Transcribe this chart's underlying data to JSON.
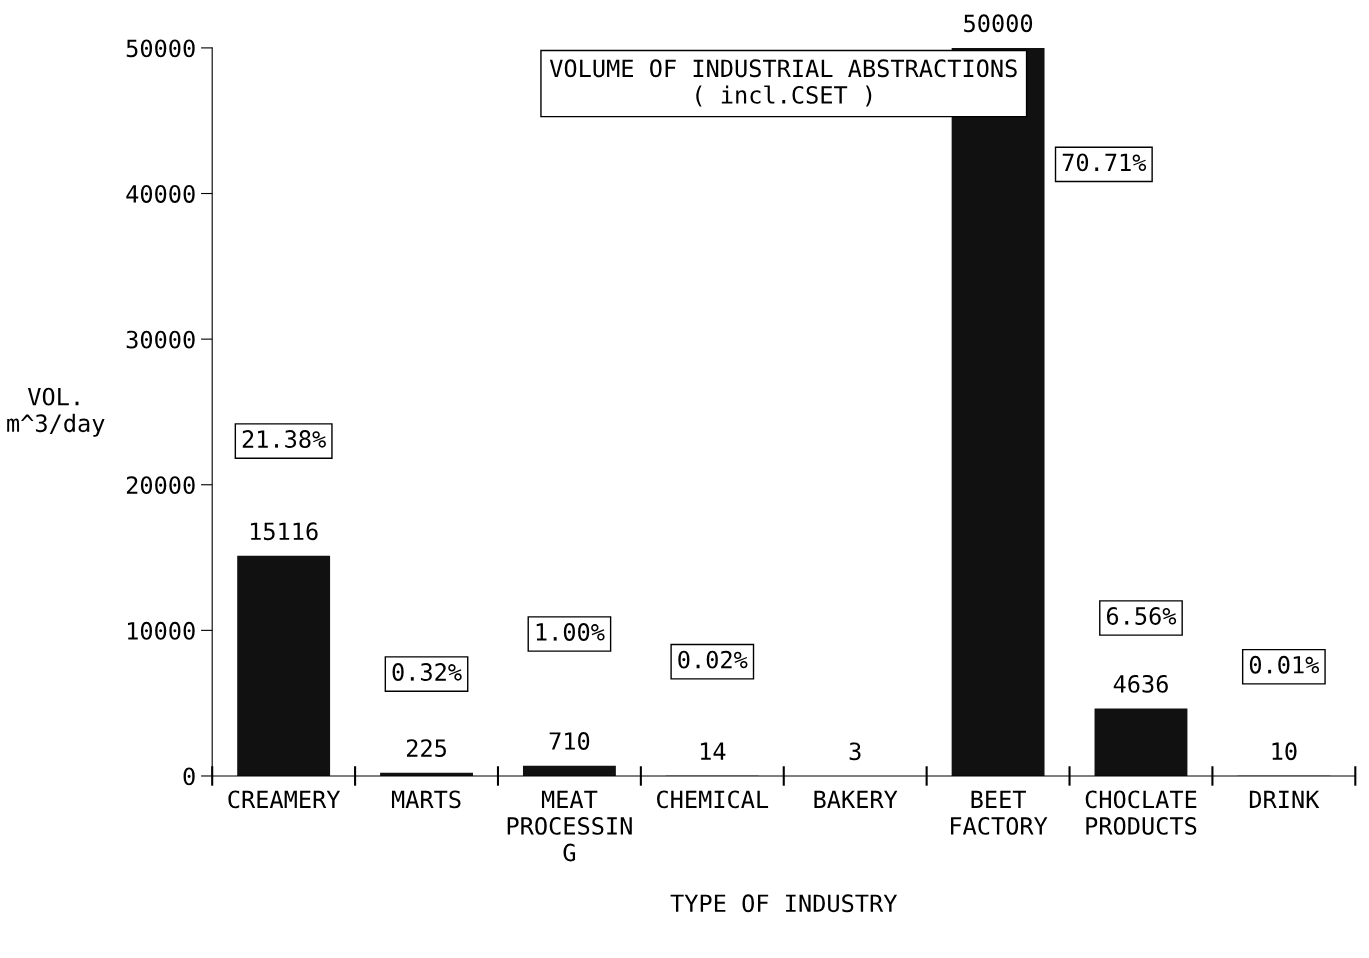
{
  "chart_data": {
    "type": "bar",
    "title": "VOLUME OF INDUSTRIAL ABSTRACTIONS",
    "subtitle": "( incl.CSET )",
    "xlabel": "TYPE OF INDUSTRY",
    "ylabel": "VOL.\nm^3/day",
    "categories": [
      "CREAMERY",
      "MARTS",
      "MEAT\nPROCESSIN\nG",
      "CHEMICAL",
      "BAKERY",
      "BEET\nFACTORY",
      "CHOCLATE\nPRODUCTS",
      "DRINK"
    ],
    "values": [
      15116,
      225,
      710,
      14,
      3,
      50000,
      4636,
      10
    ],
    "color": "#111111",
    "data_labels": true,
    "ylim": [
      0,
      50000
    ],
    "yticks": [
      0,
      10000,
      20000,
      30000,
      40000,
      50000
    ],
    "grid": false,
    "annotations": [
      "21.38%",
      "0.32%",
      "1.00%",
      "0.02%",
      "70.71%",
      "6.56%",
      "0.01%"
    ]
  }
}
